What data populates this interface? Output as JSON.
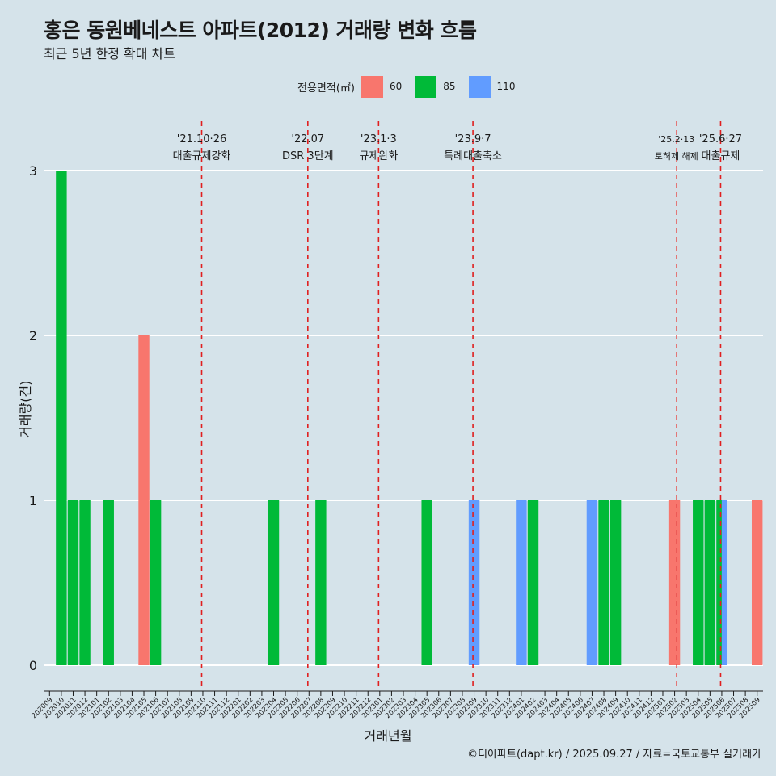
{
  "title": "홍은 동원베네스트 아파트(2012) 거래량 변화 흐름",
  "subtitle": "최근 5년 한정 확대 차트",
  "legend": {
    "title": "전용면적(㎡)",
    "items": [
      {
        "label": "60",
        "color": "#f8766d"
      },
      {
        "label": "85",
        "color": "#00ba38"
      },
      {
        "label": "110",
        "color": "#619cff"
      }
    ]
  },
  "caption": "©디아파트(dapt.kr) / 2025.09.27 / 자료=국토교통부 실거래가",
  "chart_data": {
    "type": "bar",
    "xlabel": "거래년월",
    "ylabel": "거래량(건)",
    "ylim": [
      0,
      3
    ],
    "yticks": [
      0,
      1,
      2,
      3
    ],
    "categories": [
      "202009",
      "202010",
      "202011",
      "202012",
      "202101",
      "202102",
      "202103",
      "202104",
      "202105",
      "202106",
      "202107",
      "202108",
      "202109",
      "202110",
      "202111",
      "202112",
      "202201",
      "202202",
      "202203",
      "202204",
      "202205",
      "202206",
      "202207",
      "202208",
      "202209",
      "202210",
      "202211",
      "202212",
      "202301",
      "202302",
      "202303",
      "202304",
      "202305",
      "202306",
      "202307",
      "202308",
      "202309",
      "202310",
      "202311",
      "202312",
      "202401",
      "202402",
      "202403",
      "202404",
      "202405",
      "202406",
      "202407",
      "202408",
      "202409",
      "202410",
      "202411",
      "202412",
      "202501",
      "202502",
      "202503",
      "202504",
      "202505",
      "202506",
      "202507",
      "202508",
      "202509"
    ],
    "series": [
      {
        "name": "60",
        "color": "#f8766d",
        "points": [
          [
            "202105",
            2
          ],
          [
            "202502",
            1
          ],
          [
            "202509",
            1
          ]
        ]
      },
      {
        "name": "85",
        "color": "#00ba38",
        "points": [
          [
            "202010",
            3
          ],
          [
            "202011",
            1
          ],
          [
            "202012",
            1
          ],
          [
            "202102",
            1
          ],
          [
            "202106",
            1
          ],
          [
            "202204",
            1
          ],
          [
            "202208",
            1
          ],
          [
            "202305",
            1
          ],
          [
            "202402",
            1
          ],
          [
            "202408",
            1
          ],
          [
            "202409",
            1
          ],
          [
            "202504",
            1
          ],
          [
            "202505",
            1
          ],
          [
            "202506",
            1
          ]
        ]
      },
      {
        "name": "110",
        "color": "#619cff",
        "points": [
          [
            "202309",
            1
          ],
          [
            "202401",
            1
          ],
          [
            "202407",
            1
          ],
          [
            "202506",
            1
          ]
        ]
      }
    ],
    "events": [
      {
        "x": "202110",
        "date": "'21.10·26",
        "label": "대출규제강화"
      },
      {
        "x": "202207",
        "date": "'22.07",
        "label": "DSR 3단계"
      },
      {
        "x": "202301",
        "date": "'23.1·3",
        "label": "규제완화"
      },
      {
        "x": "202309",
        "date": "'23.9·7",
        "label": "특례대출축소"
      },
      {
        "x": "202502",
        "date": "'25.2·13",
        "label": "토허제 해제",
        "thin": true
      },
      {
        "x": "202506",
        "date": "'25.6·27",
        "label": "대출규제"
      }
    ]
  }
}
